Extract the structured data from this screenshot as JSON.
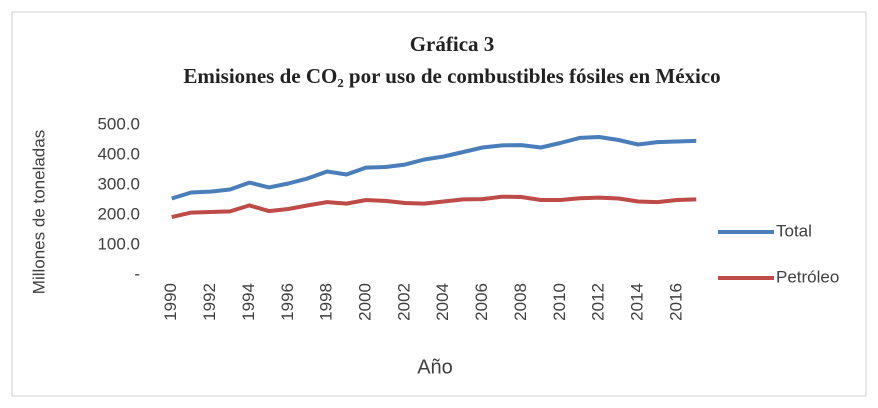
{
  "chart_data": {
    "type": "line",
    "title": "Gráfica 3",
    "subtitle": "Emisiones de CO₂ por uso de combustibles fósiles en México",
    "y_label": "Millones de toneladas",
    "x_label": "Año",
    "categories": [
      "1990",
      null,
      "1992",
      null,
      "1994",
      null,
      "1996",
      null,
      "1998",
      null,
      "2000",
      null,
      "2002",
      null,
      "2004",
      null,
      "2006",
      null,
      "2008",
      null,
      "2010",
      null,
      "2012",
      null,
      "2014",
      null,
      "2016",
      null
    ],
    "series": [
      {
        "name": "Total",
        "color": "#4a7ebb",
        "values": [
          255,
          275,
          278,
          285,
          308,
          292,
          305,
          322,
          345,
          335,
          358,
          360,
          368,
          385,
          395,
          410,
          425,
          432,
          433,
          425,
          440,
          457,
          460,
          450,
          435,
          443,
          445,
          447
        ]
      },
      {
        "name": "Petróleo",
        "color": "#be4b48",
        "values": [
          193,
          208,
          210,
          212,
          232,
          213,
          220,
          232,
          243,
          238,
          250,
          247,
          240,
          238,
          245,
          252,
          253,
          261,
          260,
          250,
          250,
          256,
          258,
          255,
          245,
          243,
          250,
          252
        ]
      }
    ],
    "ylim": [
      0,
      500
    ],
    "yticks": [
      {
        "value": 0,
        "label": "-"
      },
      {
        "value": 100,
        "label": "100.0"
      },
      {
        "value": 200,
        "label": "200.0"
      },
      {
        "value": 300,
        "label": "300.0"
      },
      {
        "value": 400,
        "label": "400.0"
      },
      {
        "value": 500,
        "label": "500.0"
      }
    ],
    "grid": false,
    "legend": "right"
  }
}
